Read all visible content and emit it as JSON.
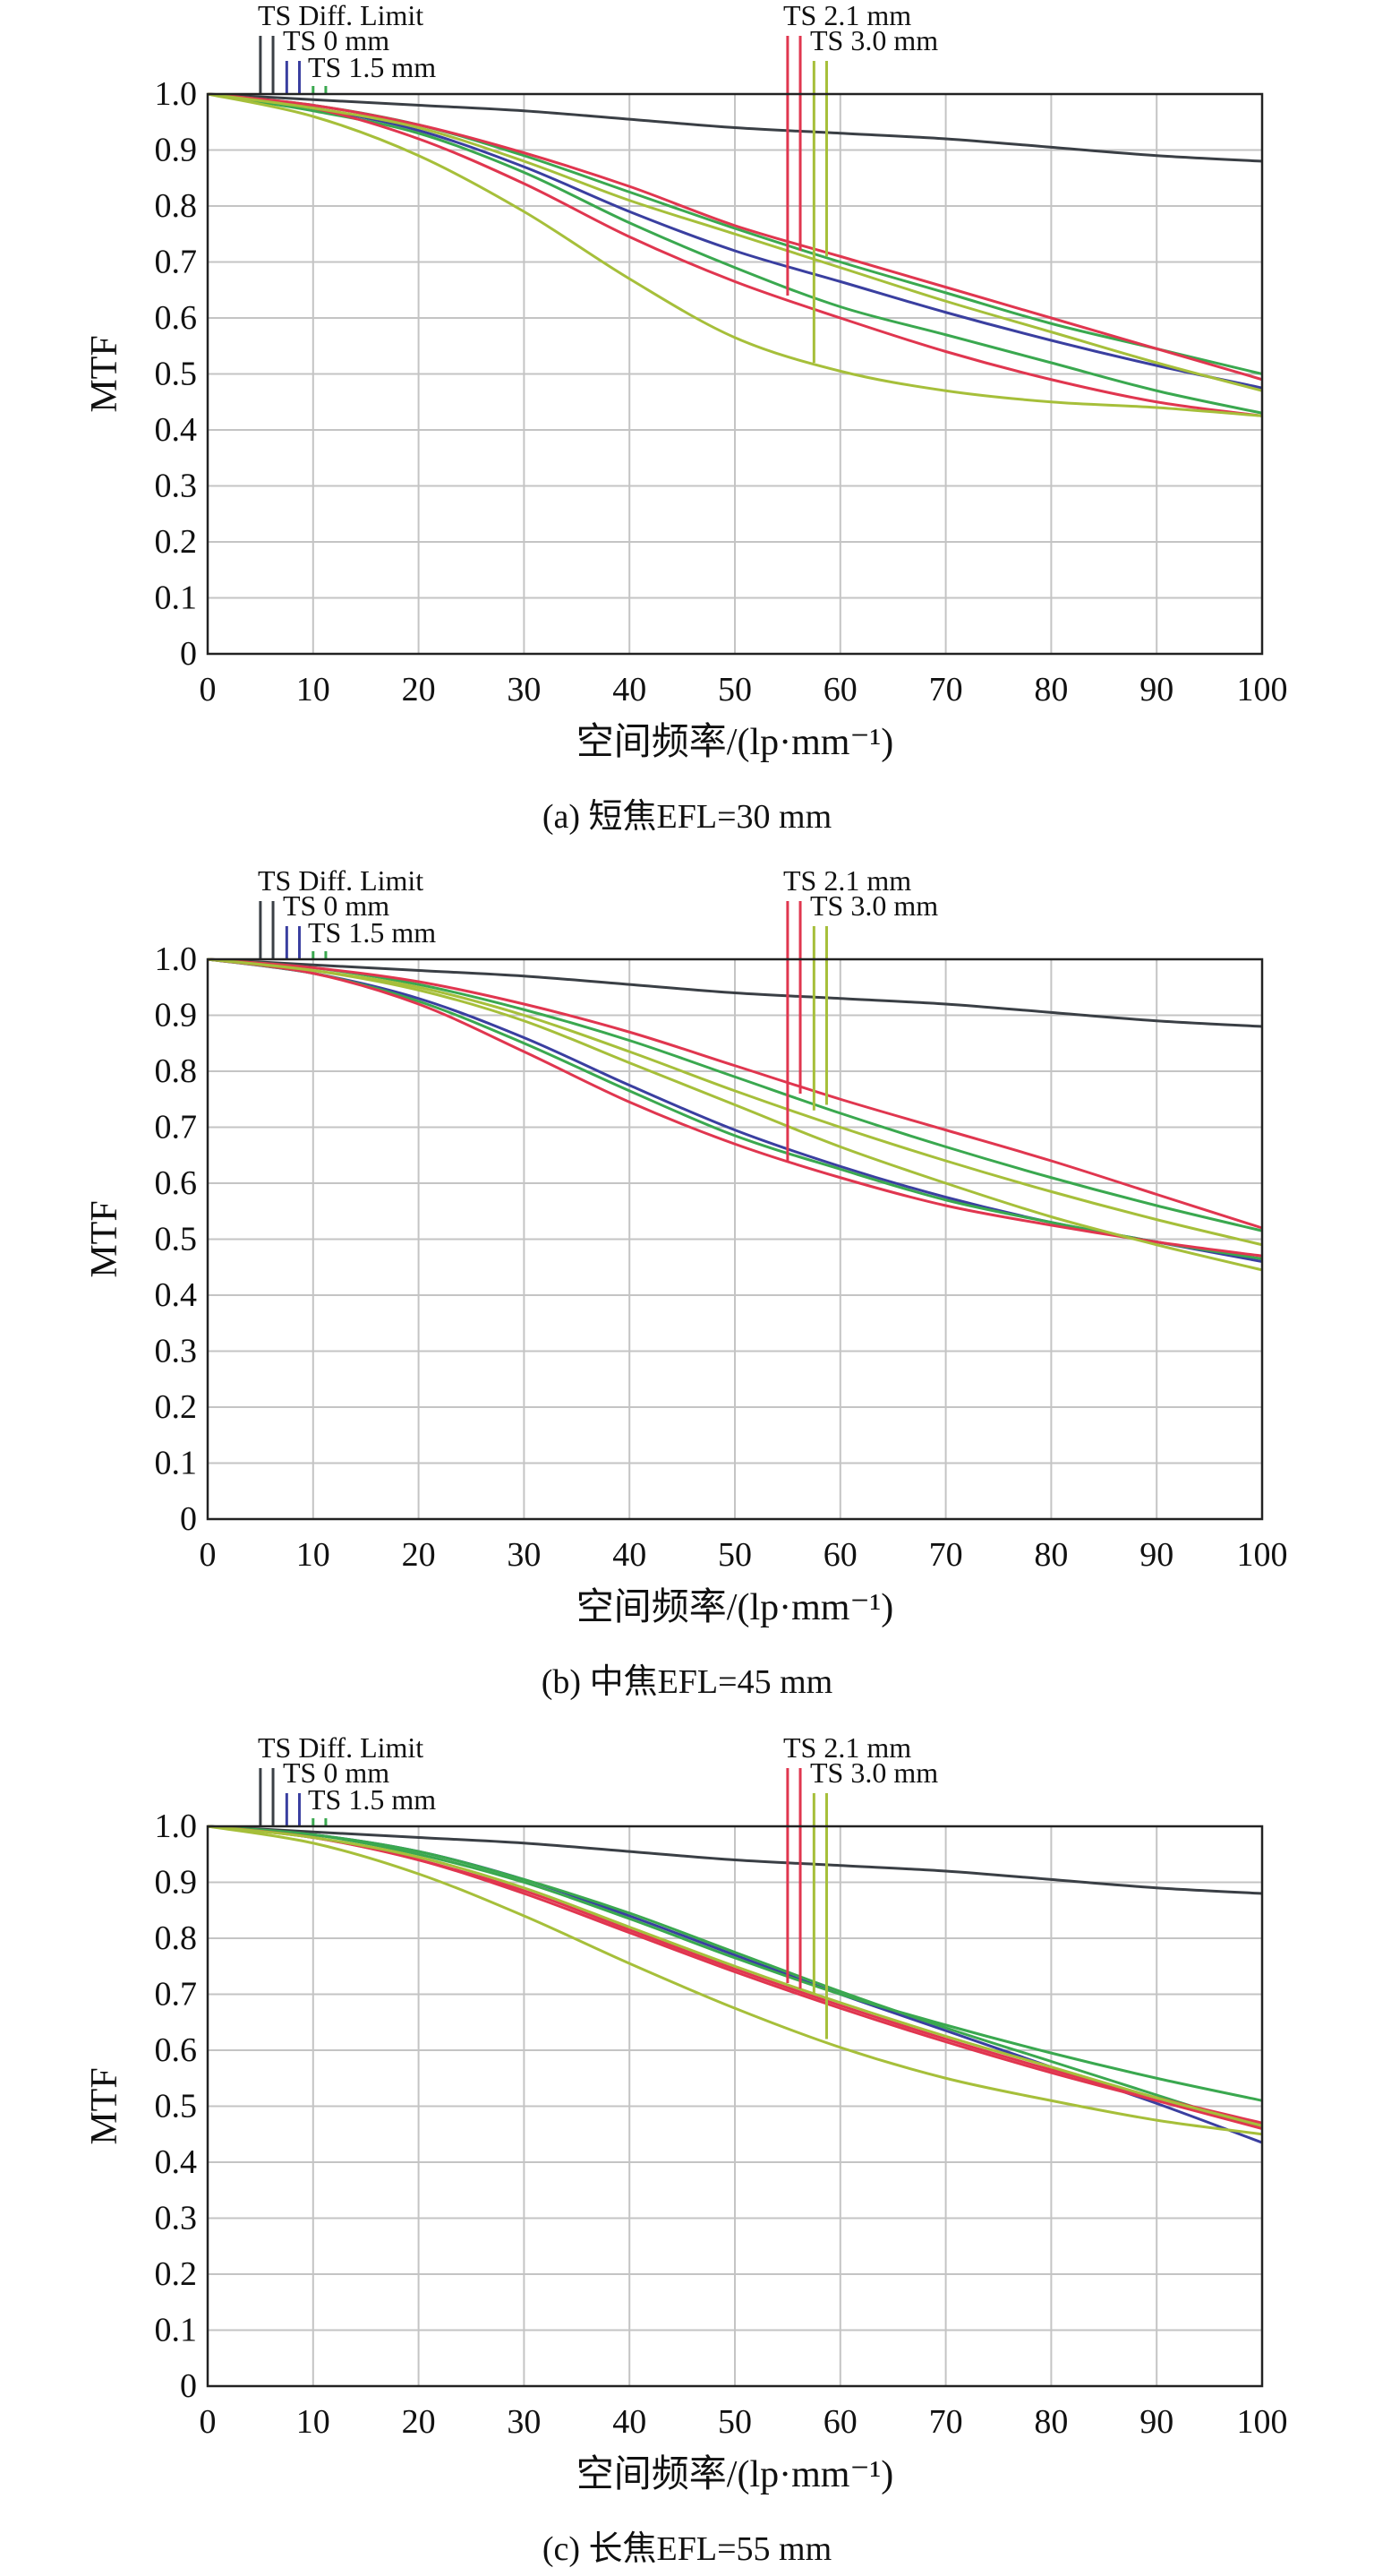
{
  "figure": {
    "captions": [
      "(a) 短焦EFL=30 mm",
      "(b) 中焦EFL=45 mm",
      "(c) 长焦EFL=55 mm"
    ]
  },
  "chart_data": [
    {
      "type": "line",
      "caption": "(a) 短焦EFL=30 mm",
      "xlabel": "空间频率/(lp·mm⁻¹)",
      "ylabel": "MTF",
      "xlim": [
        0,
        100
      ],
      "ylim": [
        0,
        1.0
      ],
      "xticks": [
        0,
        10,
        20,
        30,
        40,
        50,
        60,
        70,
        80,
        90,
        100
      ],
      "yticks": [
        "0",
        "0.1",
        "0.2",
        "0.3",
        "0.4",
        "0.5",
        "0.6",
        "0.7",
        "0.8",
        "0.9",
        "1.0"
      ],
      "grid": true,
      "legend_left": [
        "TS Diff. Limit",
        "TS 0 mm",
        "TS 1.5 mm"
      ],
      "legend_right": [
        "TS 2.1 mm",
        "TS 3.0 mm"
      ],
      "legend_markers": [
        {
          "x": 5,
          "color": "#3a3f45",
          "lead": 1
        },
        {
          "x": 6.2,
          "color": "#3a3f45",
          "lead": 1
        },
        {
          "x": 7.5,
          "color": "#3a3fa0",
          "lead": 2
        },
        {
          "x": 8.7,
          "color": "#3a3fa0",
          "lead": 2
        },
        {
          "x": 10,
          "color": "#3aa84f",
          "lead": 3
        },
        {
          "x": 11.2,
          "color": "#3aa84f",
          "lead": 3
        },
        {
          "x": 55,
          "color": "#e0364f",
          "lead": 1,
          "drop": 0.64
        },
        {
          "x": 56.2,
          "color": "#e0364f",
          "lead": 1,
          "drop": 0.72
        },
        {
          "x": 57.5,
          "color": "#a6bf3a",
          "lead": 2,
          "drop": 0.52
        },
        {
          "x": 58.7,
          "color": "#a6bf3a",
          "lead": 2,
          "drop": 0.71
        }
      ],
      "series": [
        {
          "color": "#3a3f45",
          "x": [
            0,
            10,
            20,
            30,
            40,
            50,
            60,
            70,
            80,
            90,
            100
          ],
          "y": [
            1.0,
            0.99,
            0.98,
            0.97,
            0.955,
            0.94,
            0.93,
            0.92,
            0.905,
            0.89,
            0.88
          ]
        },
        {
          "color": "#3a3fa0",
          "x": [
            0,
            10,
            20,
            30,
            40,
            50,
            60,
            70,
            80,
            90,
            100
          ],
          "y": [
            1.0,
            0.975,
            0.935,
            0.87,
            0.79,
            0.72,
            0.665,
            0.61,
            0.56,
            0.515,
            0.475
          ]
        },
        {
          "color": "#3aa84f",
          "x": [
            0,
            10,
            20,
            30,
            40,
            50,
            60,
            70,
            80,
            90,
            100
          ],
          "y": [
            1.0,
            0.97,
            0.93,
            0.86,
            0.77,
            0.69,
            0.62,
            0.57,
            0.52,
            0.47,
            0.43
          ]
        },
        {
          "color": "#3aa84f",
          "x": [
            0,
            10,
            20,
            30,
            40,
            50,
            60,
            70,
            80,
            90,
            100
          ],
          "y": [
            1.0,
            0.98,
            0.945,
            0.89,
            0.825,
            0.76,
            0.7,
            0.645,
            0.59,
            0.545,
            0.5
          ]
        },
        {
          "color": "#e0364f",
          "x": [
            0,
            10,
            20,
            30,
            40,
            50,
            60,
            70,
            80,
            90,
            100
          ],
          "y": [
            1.0,
            0.975,
            0.92,
            0.84,
            0.745,
            0.665,
            0.6,
            0.54,
            0.49,
            0.45,
            0.425
          ]
        },
        {
          "color": "#e0364f",
          "x": [
            0,
            10,
            20,
            30,
            40,
            50,
            60,
            70,
            80,
            90,
            100
          ],
          "y": [
            1.0,
            0.98,
            0.945,
            0.895,
            0.835,
            0.765,
            0.71,
            0.655,
            0.6,
            0.545,
            0.49
          ]
        },
        {
          "color": "#a6bf3a",
          "x": [
            0,
            10,
            20,
            30,
            40,
            50,
            60,
            70,
            80,
            90,
            100
          ],
          "y": [
            1.0,
            0.96,
            0.89,
            0.79,
            0.67,
            0.565,
            0.505,
            0.47,
            0.45,
            0.44,
            0.425
          ]
        },
        {
          "color": "#a6bf3a",
          "x": [
            0,
            10,
            20,
            30,
            40,
            50,
            60,
            70,
            80,
            90,
            100
          ],
          "y": [
            1.0,
            0.975,
            0.94,
            0.88,
            0.81,
            0.75,
            0.69,
            0.63,
            0.575,
            0.52,
            0.47
          ]
        }
      ]
    },
    {
      "type": "line",
      "caption": "(b) 中焦EFL=45 mm",
      "xlabel": "空间频率/(lp·mm⁻¹)",
      "ylabel": "MTF",
      "xlim": [
        0,
        100
      ],
      "ylim": [
        0,
        1.0
      ],
      "xticks": [
        0,
        10,
        20,
        30,
        40,
        50,
        60,
        70,
        80,
        90,
        100
      ],
      "yticks": [
        "0",
        "0.1",
        "0.2",
        "0.3",
        "0.4",
        "0.5",
        "0.6",
        "0.7",
        "0.8",
        "0.9",
        "1.0"
      ],
      "grid": true,
      "legend_left": [
        "TS Diff. Limit",
        "TS 0 mm",
        "TS 1.5 mm"
      ],
      "legend_right": [
        "TS 2.1 mm",
        "TS 3.0 mm"
      ],
      "legend_markers": [
        {
          "x": 5,
          "color": "#3a3f45",
          "lead": 1
        },
        {
          "x": 6.2,
          "color": "#3a3f45",
          "lead": 1
        },
        {
          "x": 7.5,
          "color": "#3a3fa0",
          "lead": 2
        },
        {
          "x": 8.7,
          "color": "#3a3fa0",
          "lead": 2
        },
        {
          "x": 10,
          "color": "#3aa84f",
          "lead": 3
        },
        {
          "x": 11.2,
          "color": "#3aa84f",
          "lead": 3
        },
        {
          "x": 55,
          "color": "#e0364f",
          "lead": 1,
          "drop": 0.64
        },
        {
          "x": 56.2,
          "color": "#e0364f",
          "lead": 1,
          "drop": 0.76
        },
        {
          "x": 57.5,
          "color": "#a6bf3a",
          "lead": 2,
          "drop": 0.73
        },
        {
          "x": 58.7,
          "color": "#a6bf3a",
          "lead": 2,
          "drop": 0.74
        }
      ],
      "series": [
        {
          "color": "#3a3f45",
          "x": [
            0,
            10,
            20,
            30,
            40,
            50,
            60,
            70,
            80,
            90,
            100
          ],
          "y": [
            1.0,
            0.99,
            0.98,
            0.97,
            0.955,
            0.94,
            0.93,
            0.92,
            0.905,
            0.89,
            0.88
          ]
        },
        {
          "color": "#3a3fa0",
          "x": [
            0,
            10,
            20,
            30,
            40,
            50,
            60,
            70,
            80,
            90,
            100
          ],
          "y": [
            1.0,
            0.975,
            0.93,
            0.86,
            0.775,
            0.695,
            0.63,
            0.575,
            0.53,
            0.495,
            0.46
          ]
        },
        {
          "color": "#3aa84f",
          "x": [
            0,
            10,
            20,
            30,
            40,
            50,
            60,
            70,
            80,
            90,
            100
          ],
          "y": [
            1.0,
            0.975,
            0.925,
            0.85,
            0.765,
            0.685,
            0.625,
            0.57,
            0.53,
            0.495,
            0.465
          ]
        },
        {
          "color": "#3aa84f",
          "x": [
            0,
            10,
            20,
            30,
            40,
            50,
            60,
            70,
            80,
            90,
            100
          ],
          "y": [
            1.0,
            0.985,
            0.955,
            0.91,
            0.855,
            0.79,
            0.725,
            0.665,
            0.61,
            0.56,
            0.515
          ]
        },
        {
          "color": "#e0364f",
          "x": [
            0,
            10,
            20,
            30,
            40,
            50,
            60,
            70,
            80,
            90,
            100
          ],
          "y": [
            1.0,
            0.975,
            0.92,
            0.835,
            0.745,
            0.67,
            0.61,
            0.56,
            0.525,
            0.495,
            0.47
          ]
        },
        {
          "color": "#e0364f",
          "x": [
            0,
            10,
            20,
            30,
            40,
            50,
            60,
            70,
            80,
            90,
            100
          ],
          "y": [
            1.0,
            0.985,
            0.96,
            0.92,
            0.87,
            0.81,
            0.75,
            0.695,
            0.64,
            0.58,
            0.52
          ]
        },
        {
          "color": "#a6bf3a",
          "x": [
            0,
            10,
            20,
            30,
            40,
            50,
            60,
            70,
            80,
            90,
            100
          ],
          "y": [
            1.0,
            0.98,
            0.945,
            0.89,
            0.815,
            0.74,
            0.665,
            0.6,
            0.54,
            0.49,
            0.445
          ]
        },
        {
          "color": "#a6bf3a",
          "x": [
            0,
            10,
            20,
            30,
            40,
            50,
            60,
            70,
            80,
            90,
            100
          ],
          "y": [
            1.0,
            0.98,
            0.95,
            0.9,
            0.835,
            0.765,
            0.7,
            0.64,
            0.585,
            0.535,
            0.49
          ]
        }
      ]
    },
    {
      "type": "line",
      "caption": "(c) 长焦EFL=55 mm",
      "xlabel": "空间频率/(lp·mm⁻¹)",
      "ylabel": "MTF",
      "xlim": [
        0,
        100
      ],
      "ylim": [
        0,
        1.0
      ],
      "xticks": [
        0,
        10,
        20,
        30,
        40,
        50,
        60,
        70,
        80,
        90,
        100
      ],
      "yticks": [
        "0",
        "0.1",
        "0.2",
        "0.3",
        "0.4",
        "0.5",
        "0.6",
        "0.7",
        "0.8",
        "0.9",
        "1.0"
      ],
      "grid": true,
      "legend_left": [
        "TS Diff. Limit",
        "TS 0 mm",
        "TS 1.5 mm"
      ],
      "legend_right": [
        "TS 2.1 mm",
        "TS 3.0 mm"
      ],
      "legend_markers": [
        {
          "x": 5,
          "color": "#3a3f45",
          "lead": 1
        },
        {
          "x": 6.2,
          "color": "#3a3f45",
          "lead": 1
        },
        {
          "x": 7.5,
          "color": "#3a3fa0",
          "lead": 2
        },
        {
          "x": 8.7,
          "color": "#3a3fa0",
          "lead": 2
        },
        {
          "x": 10,
          "color": "#3aa84f",
          "lead": 3
        },
        {
          "x": 11.2,
          "color": "#3aa84f",
          "lead": 3
        },
        {
          "x": 55,
          "color": "#e0364f",
          "lead": 1,
          "drop": 0.72
        },
        {
          "x": 56.2,
          "color": "#e0364f",
          "lead": 1,
          "drop": 0.71
        },
        {
          "x": 57.5,
          "color": "#a6bf3a",
          "lead": 2,
          "drop": 0.7
        },
        {
          "x": 58.7,
          "color": "#a6bf3a",
          "lead": 2,
          "drop": 0.62
        }
      ],
      "series": [
        {
          "color": "#3a3f45",
          "x": [
            0,
            10,
            20,
            30,
            40,
            50,
            60,
            70,
            80,
            90,
            100
          ],
          "y": [
            1.0,
            0.99,
            0.98,
            0.97,
            0.955,
            0.94,
            0.93,
            0.92,
            0.905,
            0.89,
            0.88
          ]
        },
        {
          "color": "#3a3fa0",
          "x": [
            0,
            10,
            20,
            30,
            40,
            50,
            60,
            70,
            80,
            90,
            100
          ],
          "y": [
            1.0,
            0.985,
            0.955,
            0.905,
            0.84,
            0.77,
            0.7,
            0.635,
            0.57,
            0.505,
            0.435
          ]
        },
        {
          "color": "#3aa84f",
          "x": [
            0,
            10,
            20,
            30,
            40,
            50,
            60,
            70,
            80,
            90,
            100
          ],
          "y": [
            1.0,
            0.985,
            0.955,
            0.905,
            0.845,
            0.775,
            0.705,
            0.64,
            0.58,
            0.52,
            0.46
          ]
        },
        {
          "color": "#3aa84f",
          "x": [
            0,
            10,
            20,
            30,
            40,
            50,
            60,
            70,
            80,
            90,
            100
          ],
          "y": [
            1.0,
            0.985,
            0.95,
            0.9,
            0.835,
            0.765,
            0.7,
            0.645,
            0.595,
            0.55,
            0.51
          ]
        },
        {
          "color": "#e0364f",
          "x": [
            0,
            10,
            20,
            30,
            40,
            50,
            60,
            70,
            80,
            90,
            100
          ],
          "y": [
            1.0,
            0.98,
            0.94,
            0.88,
            0.81,
            0.74,
            0.675,
            0.615,
            0.56,
            0.51,
            0.46
          ]
        },
        {
          "color": "#e0364f",
          "x": [
            0,
            10,
            20,
            30,
            40,
            50,
            60,
            70,
            80,
            90,
            100
          ],
          "y": [
            1.0,
            0.98,
            0.94,
            0.885,
            0.815,
            0.745,
            0.68,
            0.62,
            0.565,
            0.515,
            0.47
          ]
        },
        {
          "color": "#a6bf3a",
          "x": [
            0,
            10,
            20,
            30,
            40,
            50,
            60,
            70,
            80,
            90,
            100
          ],
          "y": [
            1.0,
            0.97,
            0.915,
            0.84,
            0.755,
            0.675,
            0.605,
            0.55,
            0.51,
            0.475,
            0.45
          ]
        },
        {
          "color": "#a6bf3a",
          "x": [
            0,
            10,
            20,
            30,
            40,
            50,
            60,
            70,
            80,
            90,
            100
          ],
          "y": [
            1.0,
            0.98,
            0.945,
            0.89,
            0.82,
            0.75,
            0.685,
            0.625,
            0.57,
            0.515,
            0.465
          ]
        }
      ]
    }
  ]
}
